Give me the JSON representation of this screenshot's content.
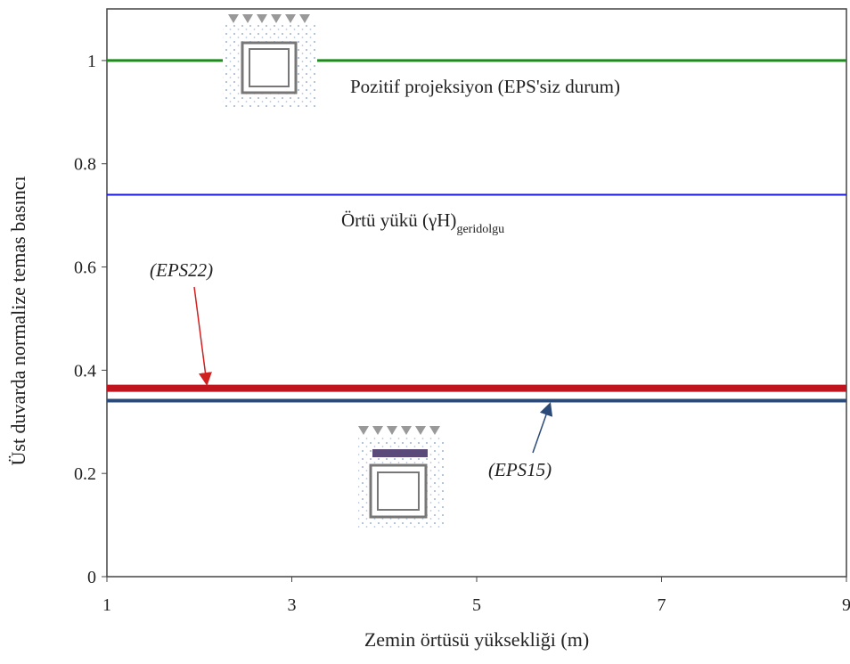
{
  "chart_data": {
    "type": "line",
    "x_label": "Zemin örtüsü yüksekliği (m)",
    "y_label": "Üst duvarda normalize temas basıncı",
    "x": [
      1,
      9
    ],
    "xlim": [
      1,
      9
    ],
    "xticks": [
      1,
      3,
      5,
      7,
      9
    ],
    "ylim": [
      0,
      1.1
    ],
    "yticks": [
      0,
      0.2,
      0.4,
      0.6,
      0.8,
      1
    ],
    "series": [
      {
        "name": "Pozitif projeksiyon (EPS'siz durum)",
        "color": "#1e8a1e",
        "values": [
          1,
          1
        ]
      },
      {
        "name": "Örtü yükü (γH)",
        "name_subscript": "geridolgu",
        "color": "#1a1aee",
        "values": [
          0.74,
          0.74
        ]
      },
      {
        "name": "(EPS22)",
        "color": "#c0141e",
        "values": [
          0.365,
          0.365
        ]
      },
      {
        "name": "(EPS15)",
        "color": "#2b4a78",
        "values": [
          0.341,
          0.341
        ]
      }
    ]
  }
}
